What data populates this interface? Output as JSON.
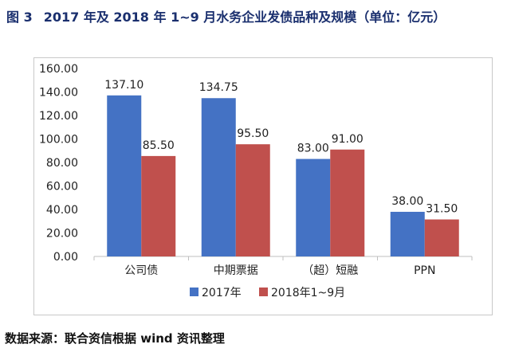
{
  "header": {
    "figure_label": "图 3",
    "title": "2017 年及 2018 年 1~9 月水务企业发债品种及规模（单位：亿元）"
  },
  "footer": {
    "source": "数据来源：联合资信根据 wind 资讯整理"
  },
  "chart_data": {
    "type": "bar",
    "categories": [
      "公司债",
      "中期票据",
      "（超）短融",
      "PPN"
    ],
    "series": [
      {
        "name": "2017年",
        "values": [
          137.1,
          134.75,
          83.0,
          38.0
        ],
        "color": "#4472c4"
      },
      {
        "name": "2018年1~9月",
        "values": [
          85.5,
          95.5,
          91.0,
          31.5
        ],
        "color": "#c0504d"
      }
    ],
    "ylim": [
      0,
      160
    ],
    "yticks": [
      0,
      20,
      40,
      60,
      80,
      100,
      120,
      140,
      160
    ],
    "ytick_labels": [
      "0.00",
      "20.00",
      "40.00",
      "60.00",
      "80.00",
      "100.00",
      "120.00",
      "140.00",
      "160.00"
    ],
    "data_labels": [
      [
        "137.10",
        "134.75",
        "83.00",
        "38.00"
      ],
      [
        "85.50",
        "95.50",
        "91.00",
        "31.50"
      ]
    ],
    "grid": false,
    "legend_position": "bottom",
    "xlabel": "",
    "ylabel": ""
  }
}
